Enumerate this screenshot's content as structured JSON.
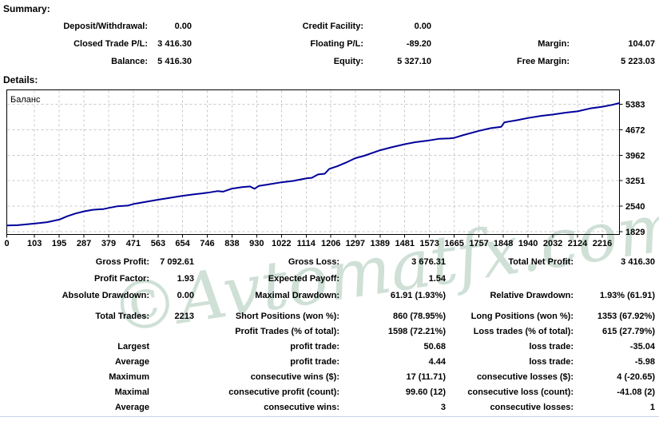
{
  "summary": {
    "heading": "Summary:",
    "rows": [
      [
        "Deposit/Withdrawal:",
        "0.00",
        "Credit Facility:",
        "0.00",
        "",
        ""
      ],
      [
        "Closed Trade P/L:",
        "3 416.30",
        "Floating P/L:",
        "-89.20",
        "Margin:",
        "104.07"
      ],
      [
        "Balance:",
        "5 416.30",
        "Equity:",
        "5 327.10",
        "Free Margin:",
        "5 223.03"
      ]
    ]
  },
  "details": {
    "heading": "Details:",
    "rows": [
      [
        "Gross Profit:",
        "7 092.61",
        "Gross Loss:",
        "3 676.31",
        "Total Net Profit:",
        "3 416.30"
      ],
      [
        "Profit Factor:",
        "1.93",
        "Expected Payoff:",
        "1.54",
        "",
        ""
      ],
      [
        "Absolute Drawdown:",
        "0.00",
        "Maximal Drawdown:",
        "61.91 (1.93%)",
        "Relative Drawdown:",
        "1.93% (61.91)"
      ],
      [
        "Total Trades:",
        "2213",
        "Short Positions (won %):",
        "860 (78.95%)",
        "Long Positions (won %):",
        "1353 (67.92%)"
      ],
      [
        "",
        "",
        "Profit Trades (% of total):",
        "1598 (72.21%)",
        "Loss trades (% of total):",
        "615 (27.79%)"
      ],
      [
        "Largest",
        "",
        "profit trade:",
        "50.68",
        "loss trade:",
        "-35.04"
      ],
      [
        "Average",
        "",
        "profit trade:",
        "4.44",
        "loss trade:",
        "-5.98"
      ],
      [
        "Maximum",
        "",
        "consecutive wins ($):",
        "17 (11.71)",
        "consecutive losses ($):",
        "4 (-20.65)"
      ],
      [
        "Maximal",
        "",
        "consecutive profit (count):",
        "99.60 (12)",
        "consecutive loss (count):",
        "-41.08 (2)"
      ],
      [
        "Average",
        "",
        "consecutive wins:",
        "3",
        "consecutive losses:",
        "1"
      ]
    ]
  },
  "watermark": {
    "text": "©Avtomatfx.com",
    "color": "#cfe0d6"
  },
  "bottom_rule_color": "#c4d4e8",
  "chart_data": {
    "type": "line",
    "title": "",
    "legend": "Баланс",
    "grid": "dashed",
    "legend_position": "top-left-inside",
    "y_axis_position": "right",
    "line_color": "#00009b",
    "grid_color": "#c9c9c9",
    "border_color": "#000000",
    "x_range": [
      0,
      2280
    ],
    "y_label_range": [
      1829,
      5383
    ],
    "x_ticks": [
      0,
      103,
      195,
      287,
      379,
      471,
      563,
      654,
      746,
      838,
      930,
      1022,
      1114,
      1206,
      1297,
      1389,
      1481,
      1573,
      1665,
      1757,
      1848,
      1940,
      2032,
      2124,
      2216
    ],
    "y_ticks": [
      1829,
      2540,
      3251,
      3962,
      4672,
      5383
    ],
    "points": [
      [
        0,
        2000
      ],
      [
        40,
        2010
      ],
      [
        103,
        2055
      ],
      [
        150,
        2095
      ],
      [
        195,
        2165
      ],
      [
        225,
        2260
      ],
      [
        255,
        2335
      ],
      [
        287,
        2395
      ],
      [
        320,
        2440
      ],
      [
        360,
        2460
      ],
      [
        379,
        2490
      ],
      [
        410,
        2535
      ],
      [
        450,
        2555
      ],
      [
        471,
        2600
      ],
      [
        520,
        2665
      ],
      [
        563,
        2720
      ],
      [
        610,
        2775
      ],
      [
        654,
        2830
      ],
      [
        700,
        2875
      ],
      [
        746,
        2915
      ],
      [
        785,
        2960
      ],
      [
        805,
        2945
      ],
      [
        838,
        3030
      ],
      [
        875,
        3070
      ],
      [
        905,
        3090
      ],
      [
        922,
        3025
      ],
      [
        938,
        3105
      ],
      [
        980,
        3155
      ],
      [
        1022,
        3205
      ],
      [
        1065,
        3245
      ],
      [
        1114,
        3315
      ],
      [
        1135,
        3330
      ],
      [
        1158,
        3425
      ],
      [
        1183,
        3445
      ],
      [
        1200,
        3580
      ],
      [
        1230,
        3655
      ],
      [
        1262,
        3755
      ],
      [
        1297,
        3880
      ],
      [
        1330,
        3945
      ],
      [
        1389,
        4100
      ],
      [
        1430,
        4180
      ],
      [
        1481,
        4270
      ],
      [
        1520,
        4325
      ],
      [
        1573,
        4375
      ],
      [
        1610,
        4420
      ],
      [
        1648,
        4430
      ],
      [
        1665,
        4445
      ],
      [
        1700,
        4525
      ],
      [
        1757,
        4640
      ],
      [
        1800,
        4715
      ],
      [
        1840,
        4755
      ],
      [
        1852,
        4880
      ],
      [
        1900,
        4940
      ],
      [
        1940,
        5000
      ],
      [
        1990,
        5060
      ],
      [
        2032,
        5095
      ],
      [
        2080,
        5150
      ],
      [
        2124,
        5185
      ],
      [
        2170,
        5265
      ],
      [
        2216,
        5315
      ],
      [
        2252,
        5365
      ],
      [
        2280,
        5416
      ]
    ]
  }
}
